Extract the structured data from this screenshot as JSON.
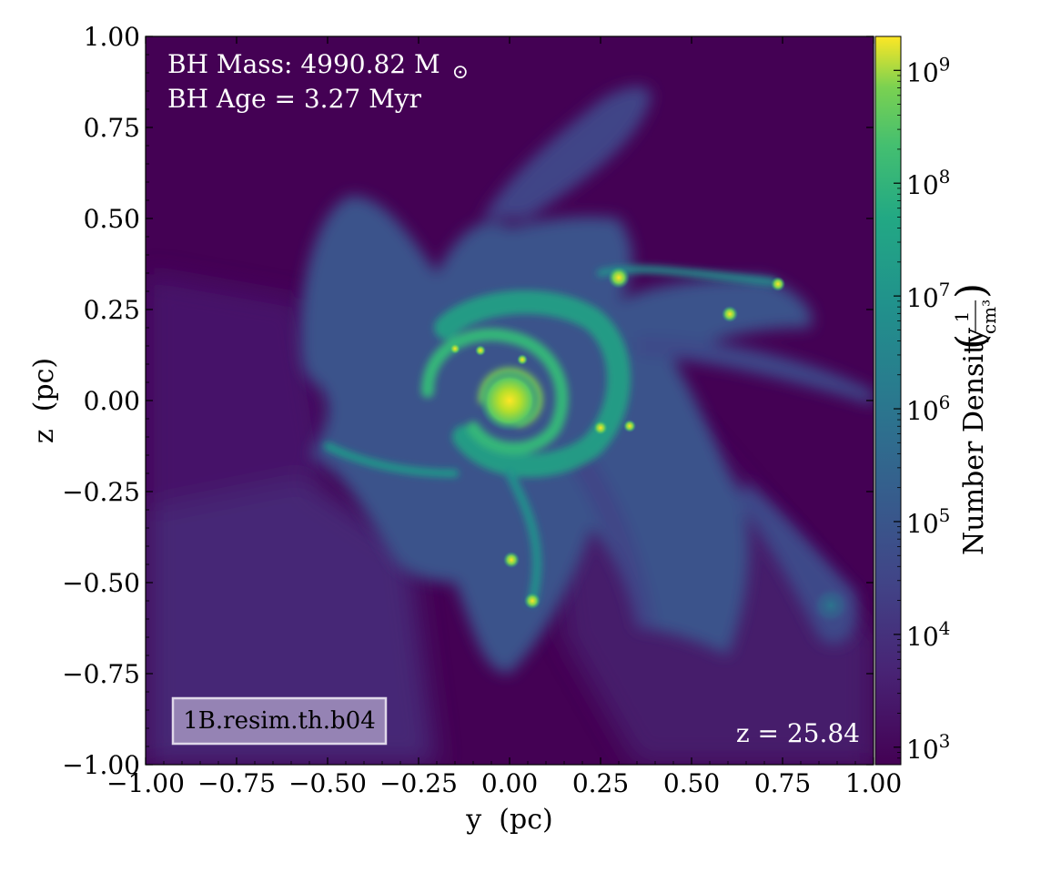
{
  "chart_data": {
    "type": "heatmap",
    "description_title": "",
    "xlabel": "y  (pc)",
    "ylabel": "z  (pc)",
    "xlim": [
      -1.0,
      1.0
    ],
    "ylim": [
      -1.0,
      1.0
    ],
    "x_ticks": [
      "−1.00",
      "−0.75",
      "−0.50",
      "−0.25",
      "0.00",
      "0.25",
      "0.50",
      "0.75",
      "1.00"
    ],
    "y_ticks": [
      "1.00",
      "0.75",
      "0.50",
      "0.25",
      "0.00",
      "−0.25",
      "−0.50",
      "−0.75",
      "−1.00"
    ],
    "x_tick_values": [
      -1.0,
      -0.75,
      -0.5,
      -0.25,
      0.0,
      0.25,
      0.5,
      0.75,
      1.0
    ],
    "y_tick_values": [
      1.0,
      0.75,
      0.5,
      0.25,
      0.0,
      -0.25,
      -0.5,
      -0.75,
      -1.0
    ],
    "colorbar": {
      "label": "Number Density",
      "unit_numerator": "1",
      "unit_denominator": "cm³",
      "scale": "log",
      "range": [
        700,
        2000000000
      ],
      "colormap": "viridis",
      "tick_values": [
        1000,
        10000,
        100000,
        1000000,
        10000000,
        100000000,
        1000000000
      ],
      "tick_base": "10",
      "tick_exponents": [
        "3",
        "4",
        "5",
        "6",
        "7",
        "8",
        "9"
      ]
    },
    "annotations": {
      "bh_mass": "BH Mass: 4990.82 M",
      "bh_mass_symbol": "⊙",
      "bh_age": "BH Age = 3.27 Myr",
      "redshift": "z = 25.84",
      "run_name": "1B.resim.th.b04"
    },
    "colors": {
      "background": "#440154",
      "low": "#48186a",
      "mid": "#2a788e",
      "high_mid": "#22a884",
      "high": "#7ad151",
      "peak": "#fde725",
      "label_box": "#9a88b8"
    }
  }
}
